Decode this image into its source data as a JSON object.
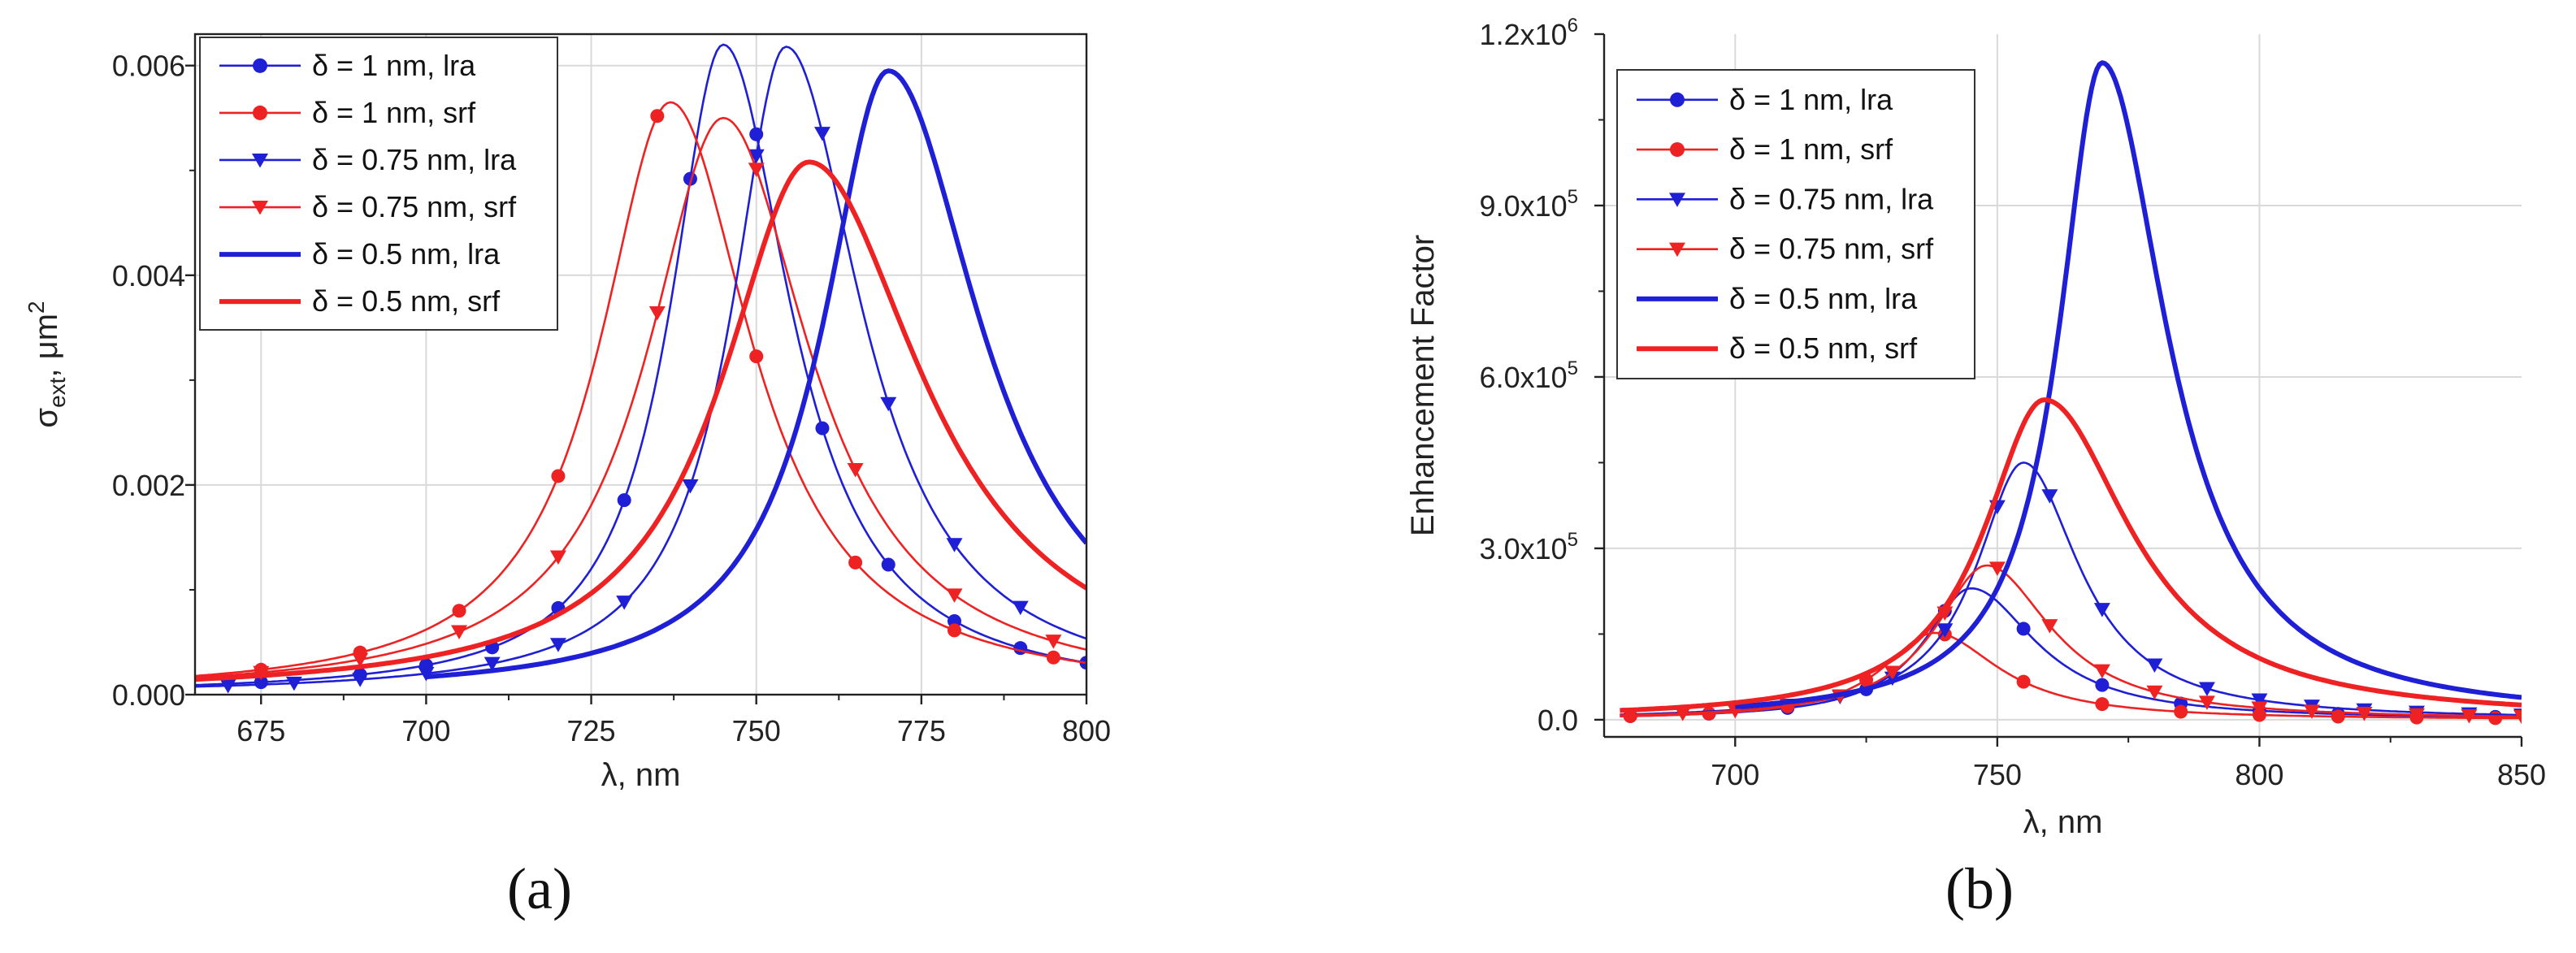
{
  "colors": {
    "blue": "#1f1fd6",
    "red": "#ee2222",
    "grid": "#d9d9d9",
    "axis": "#222222"
  },
  "chart_data": [
    {
      "type": "line",
      "panel_label": "(a)",
      "xlabel": "λ, nm",
      "ylabel": {
        "main": "σ",
        "sub": "ext",
        "unit": ", μm",
        "sup": "2"
      },
      "xlim": [
        665,
        800
      ],
      "ylim": [
        0,
        0.0063
      ],
      "xticks": [
        675,
        700,
        725,
        750,
        775,
        800
      ],
      "xtick_labels": [
        "675",
        "700",
        "725",
        "750",
        "775",
        "800"
      ],
      "yticks": [
        0,
        0.002,
        0.004,
        0.006
      ],
      "ytick_labels": [
        "0.000",
        "0.002",
        "0.004",
        "0.006"
      ],
      "grid": true,
      "legend_position": "top-left",
      "series": [
        {
          "name": "δ = 1 nm, lra",
          "color": "blue",
          "marker": "circle",
          "style": "thin",
          "x0": 665,
          "x1": 800,
          "peak_x": 745,
          "peak_y": 0.0062,
          "hwhm_left": 9.8,
          "hwhm_right": 12.5,
          "marker_x": [
            675,
            690,
            700,
            710,
            720,
            730,
            740,
            750,
            760,
            770,
            780,
            790,
            800
          ]
        },
        {
          "name": "δ = 1 nm, srf",
          "color": "red",
          "marker": "circle",
          "style": "thin",
          "x0": 665,
          "x1": 800,
          "peak_x": 737,
          "peak_y": 0.00565,
          "hwhm_left": 13,
          "hwhm_right": 15,
          "marker_x": [
            675,
            690,
            705,
            720,
            735,
            750,
            765,
            780,
            795
          ]
        },
        {
          "name": "δ = 0.75 nm, lra",
          "color": "blue",
          "marker": "triangle",
          "style": "thin",
          "x0": 665,
          "x1": 800,
          "peak_x": 754.5,
          "peak_y": 0.00618,
          "hwhm_left": 10,
          "hwhm_right": 14,
          "marker_x": [
            670,
            680,
            690,
            700,
            710,
            720,
            730,
            740,
            750,
            760,
            770,
            780,
            790
          ]
        },
        {
          "name": "δ = 0.75 nm, srf",
          "color": "red",
          "marker": "triangle",
          "style": "thin",
          "x0": 665,
          "x1": 800,
          "peak_x": 745,
          "peak_y": 0.0055,
          "hwhm_left": 14,
          "hwhm_right": 16,
          "marker_x": [
            675,
            690,
            705,
            720,
            735,
            750,
            765,
            780,
            795
          ]
        },
        {
          "name": "δ = 0.5 nm, lra",
          "color": "blue",
          "marker": "none",
          "style": "thick",
          "x0": 700,
          "x1": 800,
          "peak_x": 770,
          "peak_y": 0.00595,
          "hwhm_left": 12,
          "hwhm_right": 17,
          "marker_x": []
        },
        {
          "name": "δ = 0.5 nm, srf",
          "color": "red",
          "marker": "none",
          "style": "thick",
          "x0": 665,
          "x1": 800,
          "peak_x": 758,
          "peak_y": 0.00508,
          "hwhm_left": 16,
          "hwhm_right": 21,
          "marker_x": []
        }
      ]
    },
    {
      "type": "line",
      "panel_label": "(b)",
      "xlabel": "λ, nm",
      "ylabel": {
        "main": "Enhancement Factor"
      },
      "xlim": [
        675,
        850
      ],
      "ylim": [
        -30000,
        1200000
      ],
      "xticks": [
        700,
        750,
        800,
        850
      ],
      "xtick_labels": [
        "700",
        "750",
        "800",
        "850"
      ],
      "yticks": [
        0,
        300000,
        600000,
        900000,
        1200000
      ],
      "ytick_labels": [
        {
          "base": "0.0",
          "exp": ""
        },
        {
          "base": "3.0x10",
          "exp": "5"
        },
        {
          "base": "6.0x10",
          "exp": "5"
        },
        {
          "base": "9.0x10",
          "exp": "5"
        },
        {
          "base": "1.2x10",
          "exp": "6"
        }
      ],
      "grid": true,
      "legend_position": "top-left",
      "series": [
        {
          "name": "δ = 1 nm, lra",
          "color": "blue",
          "marker": "circle",
          "style": "thin",
          "x0": 678,
          "x1": 850,
          "peak_x": 745,
          "peak_y": 230000,
          "hwhm_left": 11,
          "hwhm_right": 15,
          "marker_x": [
            680,
            695,
            710,
            725,
            740,
            755,
            770,
            785,
            800,
            815,
            830,
            845
          ]
        },
        {
          "name": "δ = 1 nm, srf",
          "color": "red",
          "marker": "circle",
          "style": "thin",
          "x0": 678,
          "x1": 850,
          "peak_x": 738,
          "peak_y": 152000,
          "hwhm_left": 12,
          "hwhm_right": 15,
          "marker_x": [
            680,
            695,
            710,
            725,
            740,
            755,
            770,
            785,
            800,
            815,
            830,
            845
          ]
        },
        {
          "name": "δ = 0.75 nm, lra",
          "color": "blue",
          "marker": "triangle",
          "style": "thin",
          "x0": 678,
          "x1": 850,
          "peak_x": 755,
          "peak_y": 450000,
          "hwhm_left": 11,
          "hwhm_right": 13,
          "marker_x": [
            680,
            690,
            700,
            710,
            720,
            730,
            740,
            750,
            760,
            770,
            780,
            790,
            800,
            810,
            820,
            830,
            840,
            850
          ]
        },
        {
          "name": "δ = 0.75 nm, srf",
          "color": "red",
          "marker": "triangle",
          "style": "thin",
          "x0": 678,
          "x1": 850,
          "peak_x": 748,
          "peak_y": 270000,
          "hwhm_left": 12,
          "hwhm_right": 15,
          "marker_x": [
            680,
            690,
            700,
            710,
            720,
            730,
            740,
            750,
            760,
            770,
            780,
            790,
            800,
            810,
            820,
            830,
            840,
            850
          ]
        },
        {
          "name": "δ = 0.5 nm, lra",
          "color": "blue",
          "marker": "none",
          "style": "thick",
          "x0": 700,
          "x1": 850,
          "peak_x": 770,
          "peak_y": 1150000,
          "hwhm_left": 10,
          "hwhm_right": 15,
          "marker_x": []
        },
        {
          "name": "δ = 0.5 nm, srf",
          "color": "red",
          "marker": "none",
          "style": "thick",
          "x0": 678,
          "x1": 850,
          "peak_x": 759,
          "peak_y": 560000,
          "hwhm_left": 14,
          "hwhm_right": 20,
          "marker_x": []
        }
      ]
    }
  ]
}
